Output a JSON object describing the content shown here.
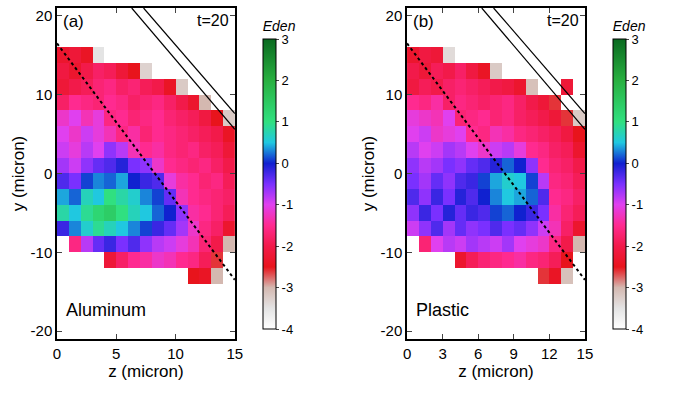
{
  "chart_data": [
    {
      "type": "heatmap",
      "panel_label": "(a)",
      "time_label": "t=20",
      "material": "Aluminum",
      "x_label": "z (micron)",
      "y_label": "y (micron)",
      "xlim": [
        0,
        15
      ],
      "ylim": [
        -21,
        21
      ],
      "xticks": [
        0,
        5,
        10,
        15
      ],
      "yticks": [
        -20,
        -10,
        0,
        10,
        20
      ],
      "x": [
        0.5,
        1.5,
        2.5,
        3.5,
        4.5,
        5.5,
        6.5,
        7.5,
        8.5,
        9.5,
        10.5,
        11.5,
        12.5,
        13.5,
        14.5
      ],
      "y": [
        -19,
        -17,
        -15,
        -13,
        -11,
        -9,
        -7,
        -5,
        -3,
        -1,
        1,
        3,
        5,
        7,
        9,
        11,
        13,
        15,
        17,
        19
      ],
      "cells": [
        [
          null,
          null,
          null,
          null,
          null,
          null,
          null,
          null,
          null,
          null,
          null,
          null,
          null,
          null,
          null
        ],
        [
          null,
          null,
          null,
          null,
          null,
          null,
          null,
          null,
          null,
          null,
          null,
          null,
          null,
          null,
          null
        ],
        [
          null,
          null,
          null,
          null,
          null,
          null,
          null,
          null,
          null,
          null,
          null,
          null,
          null,
          null,
          null
        ],
        [
          null,
          null,
          null,
          null,
          null,
          null,
          null,
          null,
          null,
          null,
          null,
          -2.5,
          -2.4,
          -3.0,
          null
        ],
        [
          null,
          null,
          null,
          null,
          -2.2,
          -1.8,
          -1.5,
          -1.4,
          -1.2,
          -1.3,
          -1.5,
          -1.6,
          -1.9,
          -2.6,
          null
        ],
        [
          null,
          -1.6,
          -0.8,
          -0.4,
          -0.2,
          -0.5,
          -0.3,
          -0.6,
          -0.8,
          -0.9,
          -1.1,
          -1.3,
          -1.7,
          -2.0,
          -3.0
        ],
        [
          -0.2,
          0.3,
          0.6,
          0.9,
          0.7,
          0.5,
          0.3,
          0.1,
          -0.2,
          -0.4,
          -0.7,
          -1.2,
          -1.6,
          -1.8,
          -2.3
        ],
        [
          0.8,
          0.5,
          0.9,
          1.2,
          1.4,
          1.0,
          0.7,
          0.5,
          0.2,
          0.0,
          -0.6,
          -1.4,
          -1.5,
          -1.7,
          -1.9
        ],
        [
          0.4,
          0.2,
          0.7,
          0.5,
          1.0,
          0.8,
          0.6,
          0.3,
          0.1,
          -0.4,
          -1.3,
          -1.5,
          -1.6,
          -1.7,
          -1.8
        ],
        [
          -0.3,
          -0.5,
          0.1,
          0.3,
          0.2,
          0.4,
          0.0,
          -0.2,
          -0.3,
          -1.1,
          -1.4,
          -1.5,
          -1.7,
          -1.6,
          -1.9
        ],
        [
          -0.7,
          -0.9,
          -0.6,
          -0.4,
          -0.3,
          -0.1,
          -0.5,
          -0.6,
          -1.2,
          -1.5,
          -1.6,
          -1.7,
          -1.6,
          -1.8,
          -2.0
        ],
        [
          -0.9,
          -1.1,
          -0.8,
          -1.0,
          -0.6,
          -0.8,
          -1.3,
          -1.5,
          -1.4,
          -1.6,
          -1.7,
          -1.6,
          -1.8,
          -1.9,
          -2.2
        ],
        [
          -1.0,
          -1.2,
          -0.9,
          -1.1,
          -1.3,
          -1.6,
          -1.4,
          -1.7,
          -1.5,
          -1.6,
          -1.7,
          -1.8,
          -1.9,
          -2.0,
          -2.4
        ],
        [
          -1.2,
          -1.0,
          -1.3,
          -1.1,
          -1.6,
          -1.5,
          -1.7,
          -1.6,
          -1.5,
          -1.7,
          -1.8,
          -1.9,
          -2.1,
          -2.5,
          -3.2
        ],
        [
          -1.8,
          -1.5,
          -1.6,
          -1.7,
          -1.5,
          -1.6,
          -1.8,
          -1.7,
          -1.6,
          -1.8,
          -2.0,
          -2.3,
          -3.0,
          null,
          null
        ],
        [
          -2.2,
          -2.0,
          -1.9,
          -1.7,
          -1.6,
          -1.8,
          -1.7,
          -1.9,
          -2.0,
          -2.4,
          -3.2,
          null,
          null,
          null,
          null
        ],
        [
          -2.1,
          -2.3,
          -2.0,
          -1.8,
          -1.9,
          -2.2,
          -2.5,
          -3.3,
          null,
          null,
          null,
          null,
          null,
          null,
          null
        ],
        [
          -2.3,
          -2.2,
          -2.4,
          -3.5,
          null,
          null,
          null,
          null,
          null,
          null,
          null,
          null,
          null,
          null,
          null
        ],
        [
          null,
          null,
          null,
          null,
          null,
          null,
          null,
          null,
          null,
          null,
          null,
          null,
          null,
          null,
          null
        ],
        [
          null,
          null,
          null,
          null,
          null,
          null,
          null,
          null,
          null,
          null,
          null,
          null,
          null,
          null,
          null
        ]
      ],
      "colorbar": {
        "title": "Eden",
        "range": [
          -4,
          3
        ],
        "ticks": [
          -4,
          -3,
          -2,
          -1,
          0,
          1,
          2,
          3
        ]
      },
      "boundaries": [
        {
          "z": [
            0,
            15
          ],
          "y": [
            16.5,
            -13.5
          ],
          "line_style": "dotted"
        },
        {
          "z": [
            6.3,
            15
          ],
          "y": [
            21,
            5.6
          ],
          "line_style": "solid"
        },
        {
          "z": [
            7.3,
            15
          ],
          "y": [
            21,
            7.6
          ],
          "line_style": "solid"
        }
      ]
    },
    {
      "type": "heatmap",
      "panel_label": "(b)",
      "time_label": "t=20",
      "material": "Plastic",
      "x_label": "z (micron)",
      "y_label": "y (micron)",
      "xlim": [
        0,
        15
      ],
      "ylim": [
        -21,
        21
      ],
      "xticks": [
        0,
        3,
        6,
        9,
        12,
        15
      ],
      "yticks": [
        -20,
        -10,
        0,
        10,
        20
      ],
      "x": [
        0.5,
        1.5,
        2.5,
        3.5,
        4.5,
        5.5,
        6.5,
        7.5,
        8.5,
        9.5,
        10.5,
        11.5,
        12.5,
        13.5,
        14.5
      ],
      "y": [
        -19,
        -17,
        -15,
        -13,
        -11,
        -9,
        -7,
        -5,
        -3,
        -1,
        1,
        3,
        5,
        7,
        9,
        11,
        13,
        15,
        17,
        19
      ],
      "cells": [
        [
          null,
          null,
          null,
          null,
          null,
          null,
          null,
          null,
          null,
          null,
          null,
          null,
          null,
          null,
          null
        ],
        [
          null,
          null,
          null,
          null,
          null,
          null,
          null,
          null,
          null,
          null,
          null,
          null,
          null,
          null,
          null
        ],
        [
          null,
          null,
          null,
          null,
          null,
          null,
          null,
          null,
          null,
          null,
          null,
          null,
          null,
          null,
          null
        ],
        [
          null,
          null,
          null,
          null,
          null,
          null,
          null,
          null,
          null,
          null,
          null,
          -2.6,
          -2.4,
          -3.1,
          null
        ],
        [
          null,
          null,
          null,
          null,
          -2.3,
          -1.9,
          -1.7,
          -1.6,
          -1.5,
          -1.4,
          -1.6,
          -1.7,
          -1.9,
          -2.5,
          null
        ],
        [
          null,
          -1.7,
          -1.0,
          -0.8,
          -0.9,
          -0.7,
          -0.8,
          -0.9,
          -0.7,
          -1.0,
          -1.1,
          -1.2,
          -1.6,
          -2.0,
          -3.0
        ],
        [
          -0.9,
          -0.6,
          -0.3,
          -0.7,
          -0.4,
          -0.6,
          -0.5,
          -0.3,
          -0.5,
          -0.4,
          -0.6,
          -0.9,
          -1.3,
          -1.8,
          -2.3
        ],
        [
          -0.6,
          -0.2,
          -0.5,
          -0.1,
          -0.4,
          -0.2,
          -0.3,
          0.1,
          0.2,
          0.0,
          -0.2,
          -0.5,
          -1.4,
          -1.7,
          -1.9
        ],
        [
          -0.3,
          -0.6,
          -0.2,
          -0.5,
          -0.1,
          -0.3,
          0.0,
          0.3,
          0.5,
          0.4,
          0.2,
          -0.3,
          -1.5,
          -1.6,
          -1.8
        ],
        [
          -0.5,
          -0.7,
          -0.4,
          -0.6,
          -0.3,
          -0.2,
          0.1,
          0.4,
          0.6,
          0.5,
          0.1,
          -0.8,
          -1.6,
          -1.7,
          -1.9
        ],
        [
          -0.6,
          -0.8,
          -0.7,
          -0.5,
          -0.6,
          -0.4,
          -0.3,
          -0.1,
          0.2,
          0.0,
          -0.6,
          -1.5,
          -1.7,
          -1.8,
          -2.0
        ],
        [
          -0.8,
          -1.0,
          -0.9,
          -0.7,
          -0.8,
          -1.0,
          -1.2,
          -0.9,
          -0.8,
          -1.1,
          -1.5,
          -1.6,
          -1.8,
          -1.9,
          -2.3
        ],
        [
          -1.0,
          -0.9,
          -1.2,
          -1.1,
          -1.0,
          -1.5,
          -1.6,
          -1.3,
          -1.4,
          -1.6,
          -1.7,
          -1.8,
          -1.9,
          -2.1,
          -2.5
        ],
        [
          -1.1,
          -1.2,
          -1.3,
          -1.0,
          -1.7,
          -1.6,
          -1.5,
          -1.7,
          -1.6,
          -1.8,
          -1.9,
          -2.0,
          -2.2,
          -2.6,
          -3.2
        ],
        [
          -1.5,
          -1.6,
          -1.4,
          -1.8,
          -1.6,
          -1.7,
          -1.8,
          -1.7,
          -1.6,
          -1.8,
          -2.0,
          -2.2,
          -2.6,
          null,
          null
        ],
        [
          -2.1,
          -1.9,
          -2.0,
          -1.8,
          -1.7,
          -1.8,
          -1.9,
          -2.0,
          -2.1,
          -2.3,
          -3.1,
          null,
          null,
          -2.2,
          null
        ],
        [
          -2.0,
          -2.2,
          -1.9,
          -2.0,
          -1.8,
          -2.1,
          -2.4,
          -3.2,
          null,
          null,
          null,
          null,
          null,
          null,
          null
        ],
        [
          -2.3,
          -2.1,
          -2.2,
          -3.4,
          null,
          null,
          null,
          null,
          null,
          null,
          null,
          null,
          null,
          null,
          null
        ],
        [
          null,
          null,
          null,
          null,
          null,
          null,
          null,
          null,
          null,
          null,
          null,
          null,
          null,
          null,
          null
        ],
        [
          null,
          null,
          null,
          null,
          null,
          null,
          null,
          null,
          null,
          null,
          null,
          null,
          null,
          null,
          null
        ]
      ],
      "colorbar": {
        "title": "Eden",
        "range": [
          -4,
          3
        ],
        "ticks": [
          -4,
          -3,
          -2,
          -1,
          0,
          1,
          2,
          3
        ]
      },
      "boundaries": [
        {
          "z": [
            0,
            15
          ],
          "y": [
            16.5,
            -13.5
          ],
          "line_style": "dotted"
        },
        {
          "z": [
            6.3,
            15
          ],
          "y": [
            21,
            5.6
          ],
          "line_style": "solid"
        },
        {
          "z": [
            7.3,
            15
          ],
          "y": [
            21,
            7.6
          ],
          "line_style": "solid"
        }
      ]
    }
  ]
}
